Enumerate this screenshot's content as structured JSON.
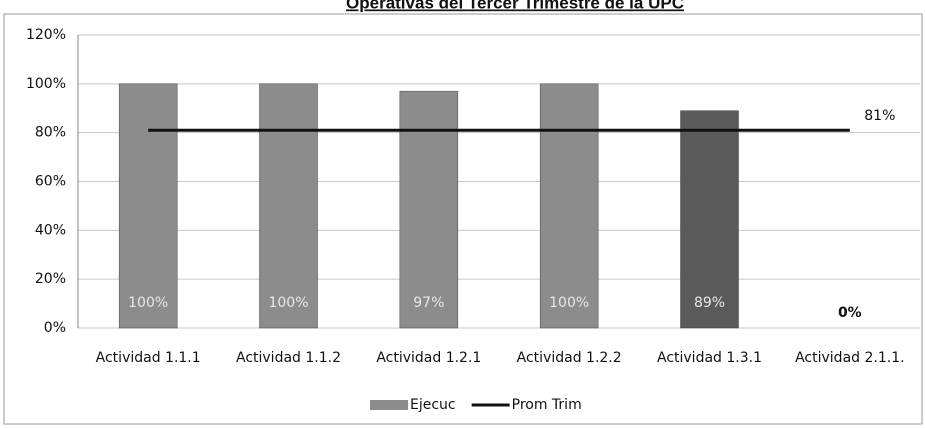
{
  "chart_data": {
    "type": "bar",
    "title": "Operativas del Tercer Trimestre de la UPC",
    "categories": [
      "Actividad 1.1.1",
      "Actividad 1.1.2",
      "Actividad 1.2.1",
      "Actividad 1.2.2",
      "Actividad 1.3.1",
      "Actividad 2.1.1."
    ],
    "series": [
      {
        "name": "Ejecuc",
        "type": "bar",
        "color": "#8c8c8c",
        "colors": [
          "#8c8c8c",
          "#8c8c8c",
          "#8c8c8c",
          "#8c8c8c",
          "#5a5a5a",
          "#8c8c8c"
        ],
        "values": [
          100,
          100,
          97,
          100,
          89,
          0
        ],
        "value_labels": [
          "100%",
          "100%",
          "97%",
          "100%",
          "89%",
          "0%"
        ]
      },
      {
        "name": "Prom Trim",
        "type": "line",
        "color": "#111111",
        "values": [
          81,
          81,
          81,
          81,
          81,
          81
        ],
        "value_labels": [
          null,
          null,
          null,
          null,
          null,
          "81%"
        ]
      }
    ],
    "ylim": [
      0,
      120
    ],
    "yticks": [
      {
        "value": 0,
        "label": "0%"
      },
      {
        "value": 20,
        "label": "20%"
      },
      {
        "value": 40,
        "label": "40%"
      },
      {
        "value": 60,
        "label": "60%"
      },
      {
        "value": 80,
        "label": "80%"
      },
      {
        "value": 100,
        "label": "100%"
      },
      {
        "value": 120,
        "label": "120%"
      }
    ],
    "grid": true,
    "legend": "bottom"
  }
}
